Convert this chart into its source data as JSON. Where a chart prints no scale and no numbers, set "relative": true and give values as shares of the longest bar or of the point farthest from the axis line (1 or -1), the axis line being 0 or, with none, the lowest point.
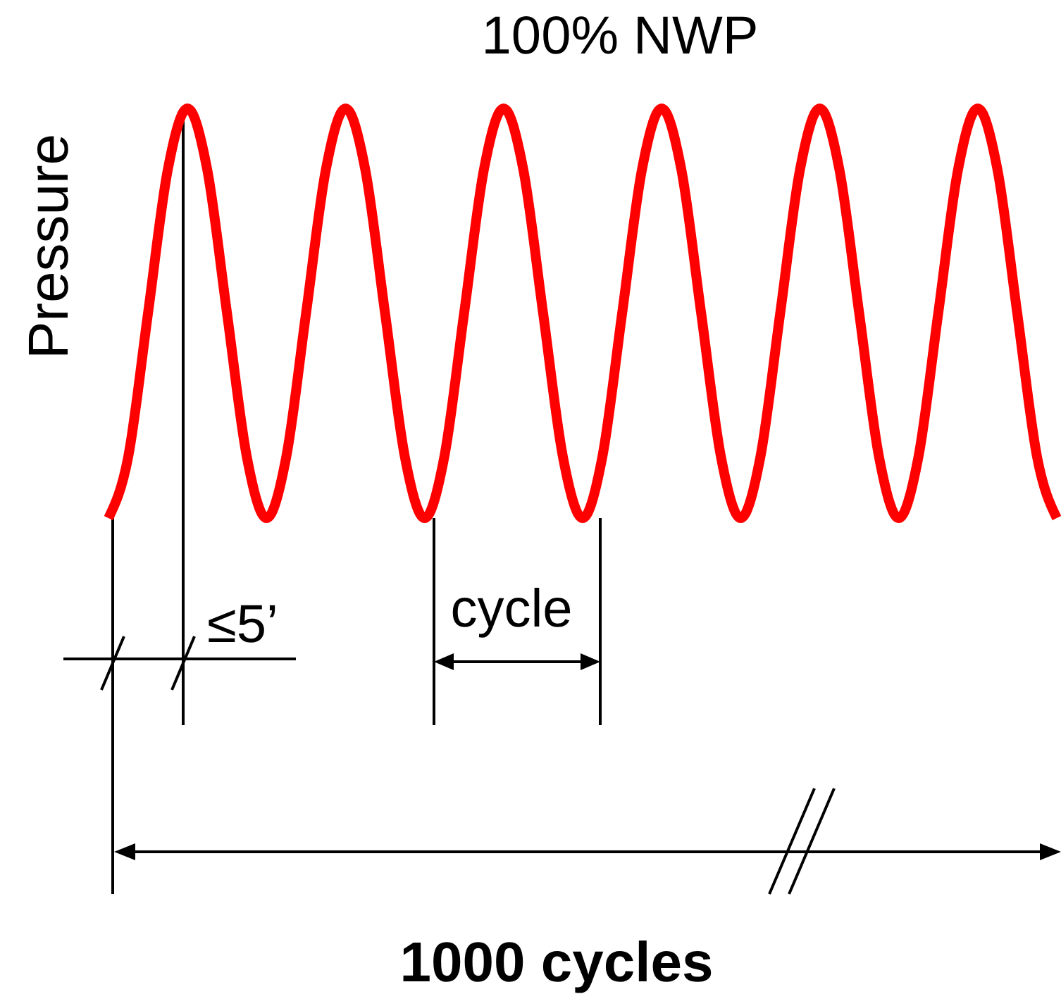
{
  "chart_data": {
    "type": "line",
    "title": "100% NWP",
    "ylabel": "Pressure",
    "relative": true,
    "categories": [
      null,
      null,
      null,
      null,
      null,
      null,
      null,
      null,
      null,
      null,
      null,
      null,
      null,
      null,
      null,
      null,
      null,
      null,
      null,
      null,
      null,
      null,
      null,
      null,
      null,
      null,
      null,
      null,
      null,
      null,
      null,
      null,
      null,
      null,
      null,
      null,
      null,
      null,
      null,
      null,
      null,
      null,
      null,
      null,
      null,
      null,
      null,
      null,
      null
    ],
    "values": [
      0,
      0.15,
      0.5,
      0.85,
      1,
      0.85,
      0.5,
      0.15,
      0,
      0.15,
      0.5,
      0.85,
      1,
      0.85,
      0.5,
      0.15,
      0,
      0.15,
      0.5,
      0.85,
      1,
      0.85,
      0.5,
      0.15,
      0,
      0.15,
      0.5,
      0.85,
      1,
      0.85,
      0.5,
      0.15,
      0,
      0.15,
      0.5,
      0.85,
      1,
      0.85,
      0.5,
      0.15,
      0,
      0.15,
      0.5,
      0.85,
      1,
      0.85,
      0.5,
      0.15,
      0
    ],
    "color": "#ff0000",
    "annotations": [
      "≤5’",
      "cycle",
      "1000 cycles"
    ]
  }
}
